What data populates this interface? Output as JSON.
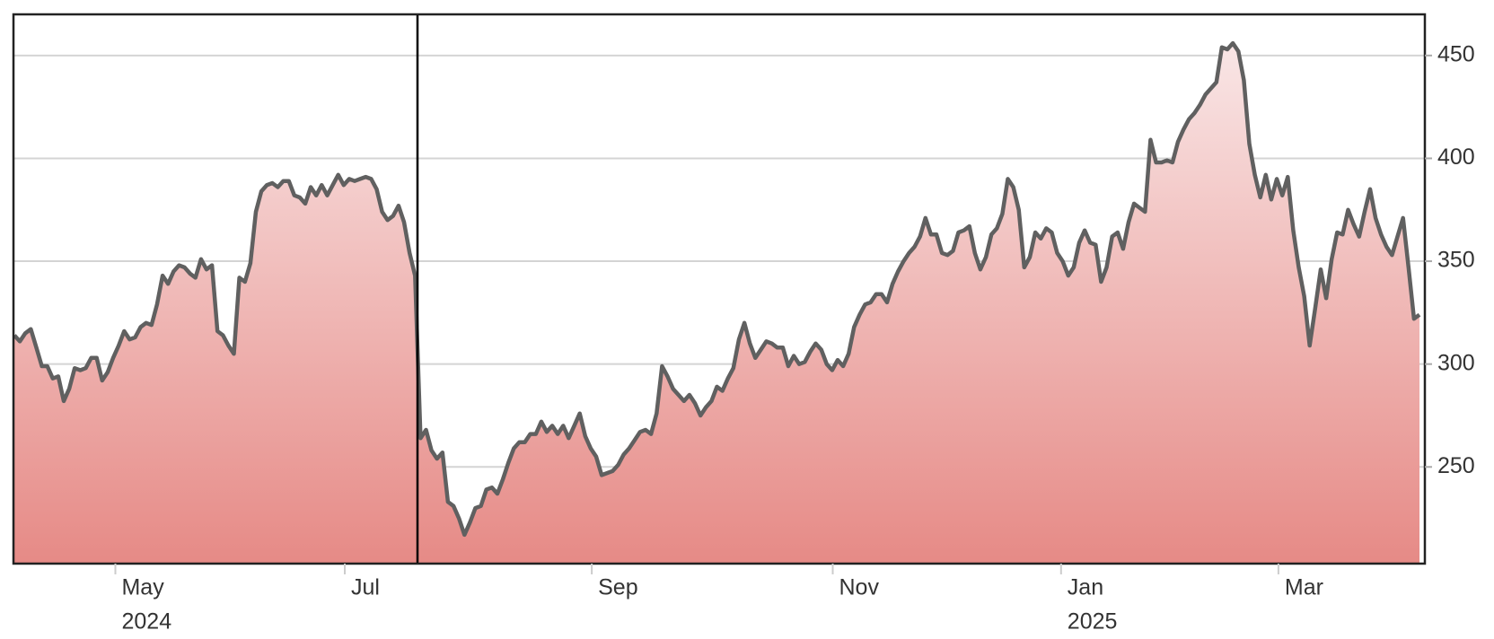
{
  "chart_data": {
    "type": "area",
    "values": [
      314,
      311,
      315,
      317,
      308,
      299,
      299,
      293,
      294,
      282,
      288,
      298,
      297,
      298,
      303,
      303,
      292,
      296,
      303,
      309,
      316,
      312,
      313,
      318,
      320,
      319,
      329,
      343,
      339,
      345,
      348,
      347,
      344,
      342,
      351,
      346,
      348,
      316,
      314,
      309,
      305,
      342,
      340,
      349,
      374,
      384,
      387,
      388,
      386,
      389,
      389,
      382,
      381,
      378,
      386,
      382,
      387,
      382,
      387,
      392,
      387,
      390,
      389,
      390,
      391,
      390,
      385,
      374,
      370,
      372,
      377,
      369,
      354,
      343,
      264,
      268,
      258,
      254,
      257,
      233,
      231,
      225,
      217,
      223,
      230,
      231,
      239,
      240,
      237,
      244,
      252,
      259,
      262,
      262,
      266,
      266,
      272,
      267,
      270,
      266,
      270,
      264,
      270,
      276,
      265,
      259,
      255,
      246,
      247,
      248,
      251,
      256,
      259,
      263,
      267,
      268,
      266,
      276,
      299,
      294,
      288,
      285,
      282,
      285,
      281,
      275,
      279,
      282,
      289,
      287,
      293,
      298,
      312,
      320,
      310,
      303,
      307,
      311,
      310,
      308,
      308,
      299,
      304,
      300,
      301,
      306,
      310,
      307,
      300,
      297,
      302,
      299,
      305,
      318,
      324,
      329,
      330,
      334,
      334,
      330,
      339,
      345,
      350,
      354,
      357,
      362,
      371,
      363,
      363,
      354,
      353,
      355,
      364,
      365,
      367,
      354,
      346,
      352,
      363,
      366,
      373,
      390,
      386,
      375,
      347,
      352,
      364,
      361,
      366,
      364,
      354,
      350,
      343,
      347,
      359,
      365,
      359,
      358,
      340,
      347,
      362,
      364,
      356,
      369,
      378,
      376,
      374,
      409,
      398,
      398,
      399,
      398,
      408,
      414,
      419,
      422,
      426,
      431,
      434,
      437,
      454,
      453,
      456,
      452,
      438,
      407,
      392,
      381,
      392,
      380,
      390,
      382,
      391,
      365,
      347,
      333,
      309,
      327,
      346,
      332,
      351,
      364,
      363,
      375,
      368,
      362,
      374,
      385,
      371,
      363,
      357,
      353,
      362,
      371,
      347,
      322,
      324
    ],
    "color": "#606060",
    "fill_top": "#f9e6e6",
    "fill_bottom": "#e68a86",
    "xlim": [
      0,
      256
    ],
    "xticks": [
      {
        "value": 18.4,
        "label": "May"
      },
      {
        "value": 60.2,
        "label": "Jul"
      },
      {
        "value": 105.2,
        "label": "Sep"
      },
      {
        "value": 149.1,
        "label": "Nov"
      },
      {
        "value": 190.7,
        "label": "Jan"
      },
      {
        "value": 230.3,
        "label": "Mar"
      }
    ],
    "year_labels": [
      {
        "value": 18.4,
        "label": "2024"
      },
      {
        "value": 190.7,
        "label": "2025"
      }
    ],
    "ylim": [
      203,
      470
    ],
    "yticks": [
      250,
      300,
      350,
      400,
      450
    ],
    "grid": true
  }
}
